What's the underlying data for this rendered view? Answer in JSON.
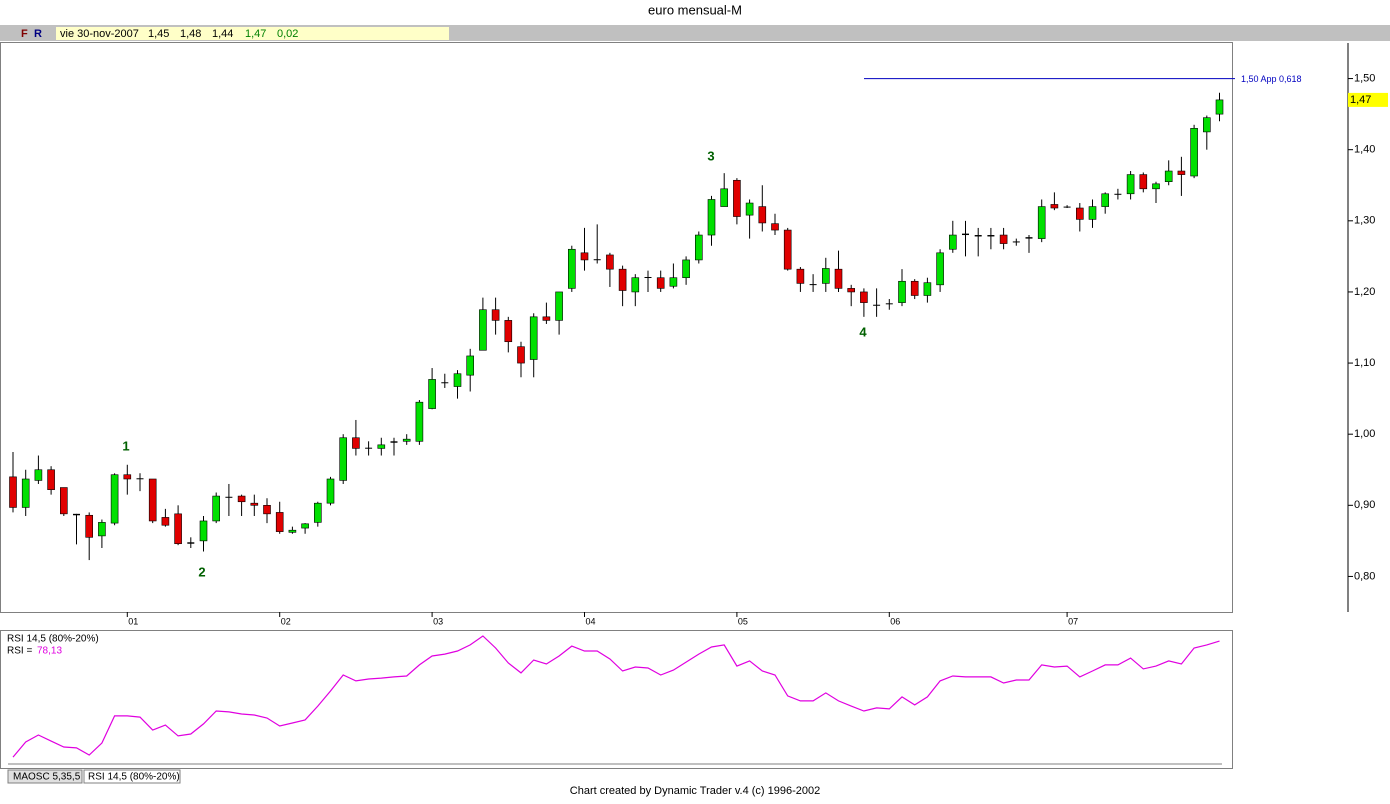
{
  "header": {
    "title": "euro mensual-M",
    "buttons": [
      "F",
      "R"
    ],
    "info": [
      "vie 30-nov-2007",
      "1,45",
      "1,48",
      "1,44",
      "1,47",
      "0,02"
    ]
  },
  "chart_data": [
    {
      "type": "candlestick",
      "categories": [
        null,
        null,
        null,
        null,
        null,
        null,
        null,
        null,
        null,
        "01",
        null,
        null,
        null,
        null,
        null,
        null,
        null,
        null,
        null,
        null,
        null,
        "02",
        null,
        null,
        null,
        null,
        null,
        null,
        null,
        null,
        null,
        null,
        null,
        "03",
        null,
        null,
        null,
        null,
        null,
        null,
        null,
        null,
        null,
        null,
        null,
        "04",
        null,
        null,
        null,
        null,
        null,
        null,
        null,
        null,
        null,
        null,
        null,
        "05",
        null,
        null,
        null,
        null,
        null,
        null,
        null,
        null,
        null,
        null,
        null,
        "06",
        null,
        null,
        null,
        null,
        null,
        null,
        null,
        null,
        null,
        null,
        null,
        null,
        null,
        "07",
        null,
        null,
        null,
        null,
        null,
        null,
        null,
        null,
        null,
        null,
        null,
        null
      ],
      "open": [
        0.94,
        0.897,
        0.935,
        0.95,
        0.925,
        0.888,
        0.886,
        0.857,
        0.875,
        0.943,
        0.938,
        0.937,
        0.883,
        0.888,
        0.846,
        0.85,
        0.878,
        0.911,
        0.913,
        0.903,
        0.9,
        0.89,
        0.862,
        0.868,
        0.876,
        0.903,
        0.935,
        0.995,
        0.98,
        0.98,
        0.988,
        0.99,
        0.99,
        1.036,
        1.072,
        1.067,
        1.083,
        1.118,
        1.175,
        1.16,
        1.123,
        1.105,
        1.165,
        1.16,
        1.205,
        1.255,
        1.245,
        1.252,
        1.232,
        1.2,
        1.22,
        1.22,
        1.208,
        1.22,
        1.245,
        1.28,
        1.32,
        1.357,
        1.308,
        1.32,
        1.296,
        1.287,
        1.232,
        1.21,
        1.212,
        1.232,
        1.205,
        1.2,
        1.181,
        1.183,
        1.185,
        1.215,
        1.195,
        1.21,
        1.26,
        1.282,
        1.28,
        1.28,
        1.28,
        1.27,
        1.275,
        1.275,
        1.323,
        1.32,
        1.318,
        1.302,
        1.32,
        1.337,
        1.338,
        1.365,
        1.345,
        1.355,
        1.37,
        1.363,
        1.425,
        1.45
      ],
      "high": [
        0.975,
        0.95,
        0.97,
        0.955,
        0.925,
        0.888,
        0.89,
        0.88,
        0.945,
        0.957,
        0.945,
        0.937,
        0.895,
        0.9,
        0.855,
        0.885,
        0.918,
        0.93,
        0.915,
        0.915,
        0.91,
        0.905,
        0.87,
        0.875,
        0.905,
        0.94,
        1.0,
        1.02,
        0.99,
        0.995,
        0.995,
        1.0,
        1.048,
        1.093,
        1.085,
        1.09,
        1.12,
        1.192,
        1.192,
        1.165,
        1.13,
        1.17,
        1.185,
        1.2,
        1.265,
        1.29,
        1.295,
        1.255,
        1.237,
        1.225,
        1.23,
        1.23,
        1.24,
        1.25,
        1.285,
        1.335,
        1.367,
        1.36,
        1.33,
        1.35,
        1.31,
        1.29,
        1.235,
        1.225,
        1.248,
        1.258,
        1.21,
        1.205,
        1.205,
        1.19,
        1.232,
        1.218,
        1.22,
        1.26,
        1.3,
        1.3,
        1.29,
        1.29,
        1.29,
        1.275,
        1.28,
        1.33,
        1.34,
        1.322,
        1.325,
        1.33,
        1.34,
        1.345,
        1.37,
        1.368,
        1.355,
        1.385,
        1.39,
        1.435,
        1.448,
        1.48
      ],
      "low": [
        0.89,
        0.885,
        0.93,
        0.915,
        0.885,
        0.845,
        0.823,
        0.84,
        0.872,
        0.915,
        0.92,
        0.875,
        0.87,
        0.844,
        0.84,
        0.835,
        0.875,
        0.885,
        0.885,
        0.885,
        0.875,
        0.86,
        0.86,
        0.86,
        0.87,
        0.9,
        0.93,
        0.97,
        0.97,
        0.97,
        0.97,
        0.985,
        0.985,
        1.035,
        1.065,
        1.05,
        1.06,
        1.118,
        1.14,
        1.115,
        1.08,
        1.08,
        1.155,
        1.14,
        1.2,
        1.23,
        1.24,
        1.207,
        1.18,
        1.18,
        1.2,
        1.2,
        1.205,
        1.21,
        1.24,
        1.265,
        1.32,
        1.295,
        1.275,
        1.285,
        1.28,
        1.23,
        1.2,
        1.2,
        1.2,
        1.2,
        1.18,
        1.165,
        1.165,
        1.175,
        1.18,
        1.19,
        1.185,
        1.2,
        1.255,
        1.25,
        1.25,
        1.26,
        1.26,
        1.265,
        1.255,
        1.27,
        1.315,
        1.318,
        1.285,
        1.29,
        1.31,
        1.33,
        1.33,
        1.34,
        1.325,
        1.35,
        1.335,
        1.36,
        1.4,
        1.44
      ],
      "close": [
        0.897,
        0.937,
        0.95,
        0.922,
        0.888,
        0.886,
        0.855,
        0.876,
        0.943,
        0.937,
        0.937,
        0.878,
        0.872,
        0.846,
        0.848,
        0.878,
        0.913,
        0.912,
        0.905,
        0.9,
        0.888,
        0.863,
        0.865,
        0.874,
        0.903,
        0.937,
        0.995,
        0.98,
        0.981,
        0.985,
        0.99,
        0.993,
        1.045,
        1.077,
        1.073,
        1.085,
        1.11,
        1.175,
        1.16,
        1.13,
        1.1,
        1.165,
        1.16,
        1.2,
        1.26,
        1.245,
        1.246,
        1.232,
        1.202,
        1.22,
        1.221,
        1.205,
        1.22,
        1.245,
        1.28,
        1.33,
        1.345,
        1.306,
        1.325,
        1.297,
        1.287,
        1.232,
        1.212,
        1.211,
        1.233,
        1.205,
        1.2,
        1.185,
        1.182,
        1.184,
        1.215,
        1.195,
        1.213,
        1.255,
        1.28,
        1.28,
        1.278,
        1.278,
        1.268,
        1.271,
        1.277,
        1.32,
        1.318,
        1.319,
        1.302,
        1.32,
        1.338,
        1.338,
        1.365,
        1.345,
        1.352,
        1.37,
        1.365,
        1.43,
        1.445,
        1.47
      ],
      "up_color": "#00e000",
      "down_color": "#e00000",
      "ylim": [
        0.75,
        1.55
      ],
      "yticks": [
        {
          "value": 0.8,
          "label": "0,80"
        },
        {
          "value": 0.9,
          "label": "0,90"
        },
        {
          "value": 1.0,
          "label": "1,00"
        },
        {
          "value": 1.1,
          "label": "1,10"
        },
        {
          "value": 1.2,
          "label": "1,20"
        },
        {
          "value": 1.3,
          "label": "1,30"
        },
        {
          "value": 1.4,
          "label": "1,40"
        },
        {
          "value": 1.5,
          "label": "1,50"
        }
      ],
      "last_price": {
        "value": 1.47,
        "label": "1,47"
      },
      "level_line": {
        "value": 1.5,
        "label": "1,50 App 0,618",
        "color": "#0000c0"
      },
      "wave_labels": [
        "1",
        "2",
        "3",
        "4"
      ]
    },
    {
      "type": "line",
      "title": "RSI 14,5 (80%-20%)",
      "value_name": "RSI =",
      "value_label": "78,13",
      "color": "#e000e0",
      "ylim": [
        25,
        82
      ],
      "values": [
        28.8,
        35.2,
        38.2,
        35.6,
        33.1,
        32.7,
        29.7,
        34.8,
        46.3,
        46.3,
        45.8,
        40.3,
        42.4,
        37.8,
        38.6,
        42.9,
        48.4,
        48.0,
        47.1,
        46.7,
        45.4,
        42.0,
        43.3,
        44.6,
        50.5,
        56.9,
        63.7,
        61.2,
        62.0,
        62.4,
        62.9,
        63.3,
        68.0,
        71.8,
        72.6,
        73.9,
        76.5,
        80.3,
        75.2,
        68.8,
        64.6,
        70.1,
        68.4,
        71.8,
        76.0,
        73.9,
        73.9,
        70.5,
        65.4,
        67.1,
        66.7,
        63.7,
        65.8,
        69.2,
        72.6,
        75.6,
        76.5,
        67.5,
        69.7,
        65.4,
        63.7,
        54.8,
        52.7,
        52.7,
        56.1,
        52.7,
        50.5,
        48.4,
        49.7,
        49.3,
        54.4,
        51.0,
        54.4,
        61.2,
        63.3,
        62.9,
        62.9,
        62.9,
        60.3,
        61.6,
        61.6,
        68.0,
        67.1,
        67.5,
        62.9,
        65.4,
        68.0,
        68.0,
        70.9,
        66.3,
        67.5,
        69.7,
        68.4,
        75.2,
        76.5,
        78.13
      ]
    }
  ],
  "tabs": [
    "MAOSC 5,35,5",
    "RSI 14,5 (80%-20%)"
  ],
  "footer": "Chart created by Dynamic Trader v.4  (c) 1996-2002"
}
